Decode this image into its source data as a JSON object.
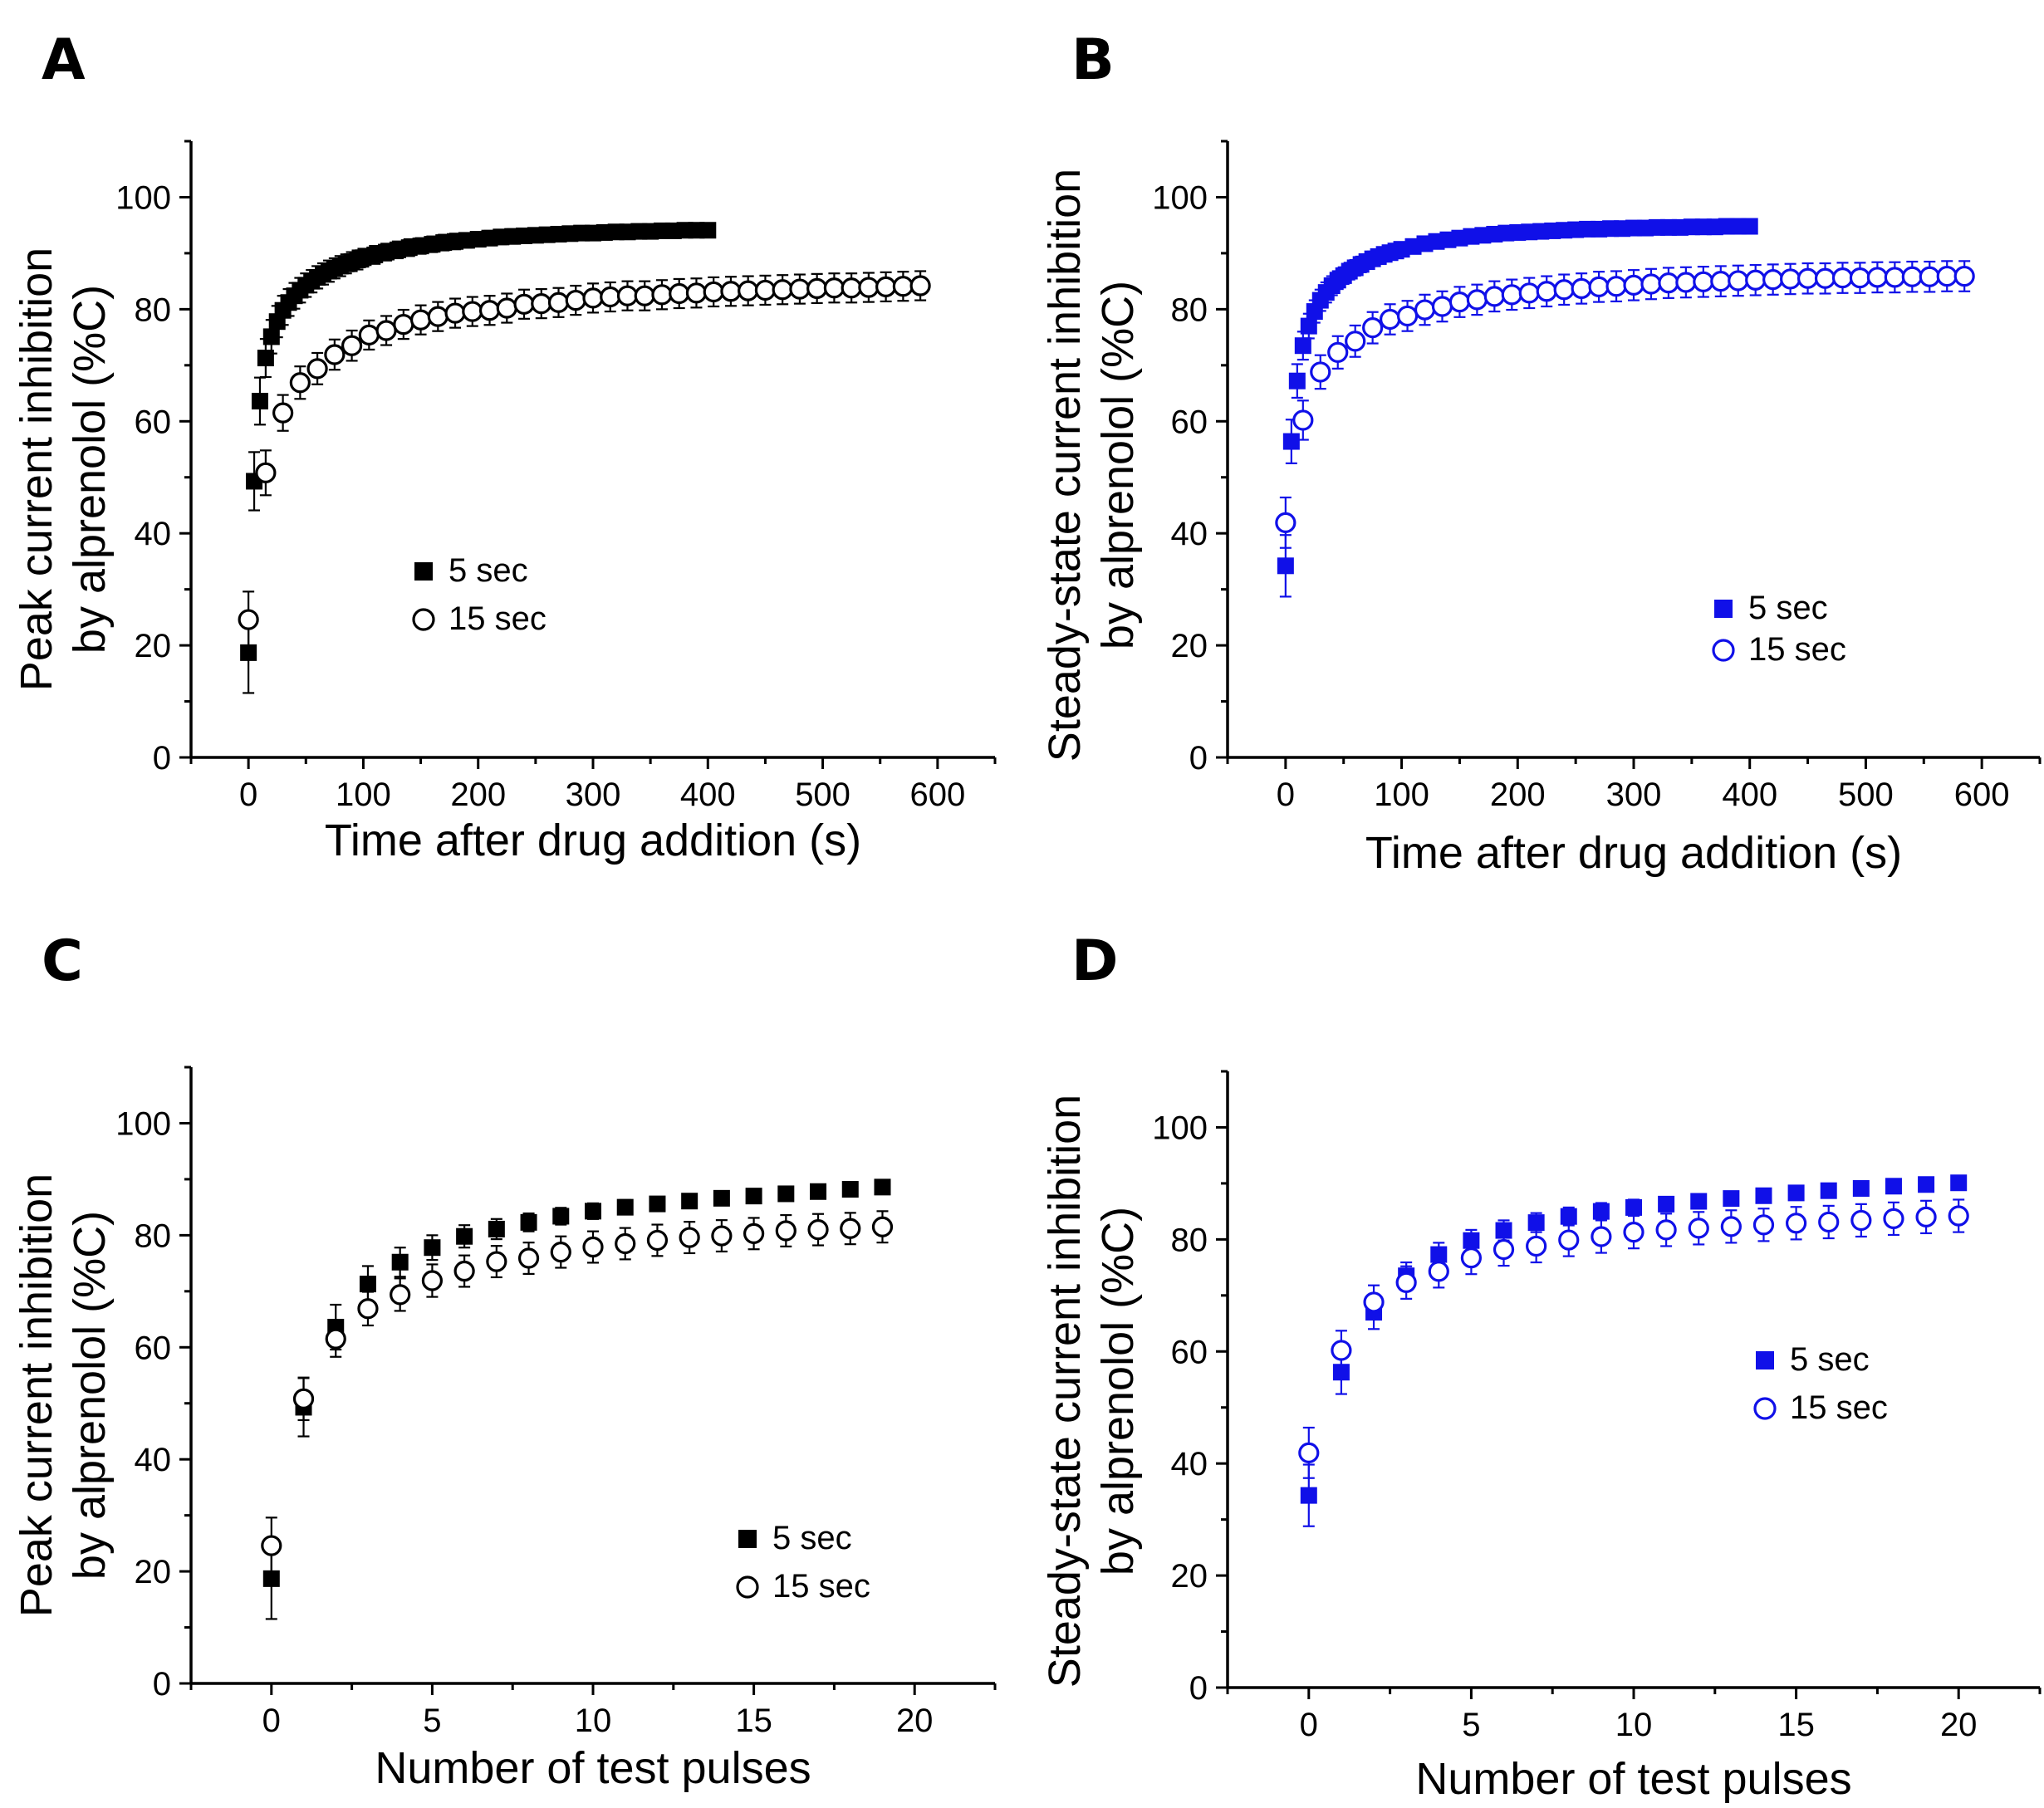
{
  "colors": {
    "black": "#000000",
    "blue": "#1010e8"
  },
  "chart_data": [
    {
      "panel_label": "A",
      "type": "scatter",
      "xlabel": "Time after drug addition (s)",
      "ylabel_line1": "Peak current inhibition",
      "ylabel_line2": "by alprenolol (%C)",
      "xlim": [
        -50,
        650
      ],
      "ylim": [
        0,
        110
      ],
      "xticks": [
        0,
        100,
        200,
        300,
        400,
        500,
        600
      ],
      "yticks": [
        0,
        20,
        40,
        60,
        80,
        100
      ],
      "color": "black",
      "legend_position": "center",
      "series": [
        {
          "name": "5 sec",
          "marker": "square-filled",
          "x": [
            0,
            5,
            10,
            15,
            20,
            25,
            30,
            35,
            40,
            45,
            50,
            55,
            60,
            65,
            70,
            75,
            80,
            85,
            90,
            95,
            100,
            110,
            120,
            130,
            140,
            150,
            160,
            170,
            180,
            190,
            200,
            210,
            220,
            230,
            240,
            250,
            260,
            270,
            280,
            290,
            300,
            310,
            320,
            330,
            340,
            350,
            360,
            370,
            380,
            390,
            400
          ],
          "y": [
            18.7,
            49.3,
            63.6,
            71.3,
            75.1,
            77.8,
            79.8,
            81.2,
            82.4,
            83.4,
            84.3,
            85,
            85.7,
            86.3,
            86.8,
            87.3,
            87.7,
            88.1,
            88.5,
            88.8,
            89.2,
            89.7,
            90.2,
            90.6,
            91,
            91.3,
            91.6,
            91.9,
            92.1,
            92.3,
            92.5,
            92.7,
            92.9,
            93,
            93.1,
            93.2,
            93.3,
            93.4,
            93.5,
            93.6,
            93.6,
            93.7,
            93.8,
            93.8,
            93.9,
            93.9,
            94,
            94,
            94.1,
            94.1,
            94.1
          ],
          "err": [
            7.2,
            5.2,
            4.2,
            3.4,
            3,
            2.8,
            2.6,
            2.4,
            2.3,
            2.2,
            2.1,
            2,
            2,
            1.9,
            1.9,
            1.8,
            1.8,
            1.7,
            1.7,
            1.7,
            1.6,
            1.6,
            1.5,
            1.5,
            1.5,
            1.4,
            1.4,
            1.4,
            1.4,
            1.3,
            1.3,
            1.3,
            1.3,
            1.3,
            1.3,
            1.2,
            1.2,
            1.2,
            1.2,
            1.2,
            1.2,
            1.2,
            1.2,
            1.2,
            1.2,
            1.2,
            1.2,
            1.2,
            1.2,
            1.2,
            1.2
          ]
        },
        {
          "name": "15 sec",
          "marker": "circle-open",
          "x": [
            0,
            15,
            30,
            45,
            60,
            75,
            90,
            105,
            120,
            135,
            150,
            165,
            180,
            195,
            210,
            225,
            240,
            255,
            270,
            285,
            300,
            315,
            330,
            345,
            360,
            375,
            390,
            405,
            420,
            435,
            450,
            465,
            480,
            495,
            510,
            525,
            540,
            555,
            570,
            585
          ],
          "y": [
            24.6,
            50.8,
            61.5,
            66.9,
            69.4,
            71.9,
            73.5,
            75.4,
            76.2,
            77.3,
            78.1,
            78.7,
            79.3,
            79.6,
            79.8,
            80.2,
            80.9,
            81,
            81.2,
            81.6,
            82,
            82.2,
            82.4,
            82.4,
            82.6,
            82.8,
            82.9,
            83.1,
            83.2,
            83.3,
            83.4,
            83.5,
            83.6,
            83.7,
            83.8,
            83.8,
            83.9,
            84,
            84.1,
            84.2
          ],
          "err": [
            5,
            4,
            3.2,
            2.9,
            2.8,
            2.7,
            2.7,
            2.6,
            2.6,
            2.6,
            2.6,
            2.6,
            2.6,
            2.6,
            2.6,
            2.6,
            2.6,
            2.6,
            2.6,
            2.6,
            2.6,
            2.6,
            2.6,
            2.6,
            2.6,
            2.6,
            2.6,
            2.6,
            2.6,
            2.6,
            2.6,
            2.6,
            2.6,
            2.6,
            2.6,
            2.6,
            2.6,
            2.6,
            2.6,
            2.6
          ]
        }
      ]
    },
    {
      "panel_label": "B",
      "type": "scatter",
      "xlabel": "Time after drug addition (s)",
      "ylabel_line1": "Steady-state current inhibition",
      "ylabel_line2": "by alprenolol (%C)",
      "xlim": [
        -50,
        650
      ],
      "ylim": [
        0,
        110
      ],
      "xticks": [
        0,
        100,
        200,
        300,
        400,
        500,
        600
      ],
      "yticks": [
        0,
        20,
        40,
        60,
        80,
        100
      ],
      "color": "blue",
      "legend_position": "right",
      "series": [
        {
          "name": "5 sec",
          "marker": "square-filled",
          "x": [
            0,
            5,
            10,
            15,
            20,
            25,
            30,
            35,
            40,
            45,
            50,
            55,
            60,
            65,
            70,
            75,
            80,
            85,
            90,
            95,
            100,
            110,
            120,
            130,
            140,
            150,
            160,
            170,
            180,
            190,
            200,
            210,
            220,
            230,
            240,
            250,
            260,
            270,
            280,
            290,
            300,
            310,
            320,
            330,
            340,
            350,
            360,
            370,
            380,
            390,
            400
          ],
          "y": [
            34.2,
            56.4,
            67.2,
            73.5,
            77,
            79.6,
            81.6,
            83,
            84.2,
            85.2,
            86,
            86.8,
            87.4,
            88,
            88.5,
            89,
            89.4,
            89.8,
            90.1,
            90.4,
            90.7,
            91.2,
            91.7,
            92.1,
            92.4,
            92.7,
            93,
            93.2,
            93.4,
            93.6,
            93.7,
            93.8,
            93.9,
            94,
            94.1,
            94.2,
            94.3,
            94.3,
            94.4,
            94.4,
            94.5,
            94.5,
            94.6,
            94.6,
            94.6,
            94.7,
            94.7,
            94.7,
            94.8,
            94.8,
            94.8
          ],
          "err": [
            5.5,
            3.9,
            3,
            2.5,
            2.2,
            2,
            1.9,
            1.8,
            1.7,
            1.6,
            1.5,
            1.5,
            1.4,
            1.4,
            1.3,
            1.3,
            1.3,
            1.2,
            1.2,
            1.2,
            1.1,
            1.1,
            1.1,
            1,
            1,
            1,
            1,
            1,
            1,
            1,
            1,
            1,
            1,
            1,
            1,
            1,
            1,
            1,
            1,
            1,
            1,
            1,
            1,
            1,
            1,
            1,
            1,
            1,
            1,
            1,
            1
          ]
        },
        {
          "name": "15 sec",
          "marker": "circle-open",
          "x": [
            0,
            15,
            30,
            45,
            60,
            75,
            90,
            105,
            120,
            135,
            150,
            165,
            180,
            195,
            210,
            225,
            240,
            255,
            270,
            285,
            300,
            315,
            330,
            345,
            360,
            375,
            390,
            405,
            420,
            435,
            450,
            465,
            480,
            495,
            510,
            525,
            540,
            555,
            570,
            585
          ],
          "y": [
            41.9,
            60.2,
            68.8,
            72.3,
            74.3,
            76.7,
            78.2,
            78.8,
            79.9,
            80.5,
            81.3,
            81.7,
            82.3,
            82.6,
            82.9,
            83.2,
            83.5,
            83.7,
            84,
            84.1,
            84.3,
            84.5,
            84.7,
            84.8,
            84.9,
            85,
            85.1,
            85.2,
            85.3,
            85.4,
            85.5,
            85.5,
            85.6,
            85.6,
            85.7,
            85.7,
            85.8,
            85.8,
            85.9,
            85.9
          ],
          "err": [
            4.5,
            3.5,
            3,
            2.9,
            2.8,
            2.8,
            2.7,
            2.7,
            2.7,
            2.7,
            2.7,
            2.7,
            2.7,
            2.7,
            2.7,
            2.7,
            2.7,
            2.7,
            2.7,
            2.7,
            2.7,
            2.7,
            2.7,
            2.7,
            2.7,
            2.7,
            2.7,
            2.7,
            2.7,
            2.7,
            2.7,
            2.7,
            2.7,
            2.7,
            2.7,
            2.7,
            2.7,
            2.7,
            2.7,
            2.7
          ]
        }
      ]
    },
    {
      "panel_label": "C",
      "type": "scatter",
      "xlabel": "Number of test pulses",
      "ylabel_line1": "Peak current inhibition",
      "ylabel_line2": "by alprenolol (%C)",
      "xlim": [
        -2.5,
        22.5
      ],
      "ylim": [
        0,
        110
      ],
      "xticks": [
        0,
        5,
        10,
        15,
        20
      ],
      "yticks": [
        0,
        20,
        40,
        60,
        80,
        100
      ],
      "color": "black",
      "legend_position": "bottom-right",
      "series": [
        {
          "name": "5 sec",
          "marker": "square-filled",
          "x": [
            0,
            1,
            2,
            3,
            4,
            5,
            6,
            7,
            8,
            9,
            10,
            11,
            12,
            13,
            14,
            15,
            16,
            17,
            18,
            19
          ],
          "y": [
            18.7,
            49.3,
            63.6,
            71.3,
            75.2,
            77.8,
            79.8,
            81.1,
            82.3,
            83.4,
            84.3,
            85,
            85.6,
            86.1,
            86.6,
            87,
            87.4,
            87.8,
            88.2,
            88.6
          ],
          "err": [
            7.2,
            5.2,
            4,
            3.2,
            2.6,
            2.2,
            2,
            1.8,
            1.6,
            1.5,
            1.4,
            1.3,
            1.2,
            1.2,
            1.1,
            1.1,
            1,
            1,
            1,
            1
          ]
        },
        {
          "name": "15 sec",
          "marker": "circle-open",
          "x": [
            0,
            1,
            2,
            3,
            4,
            5,
            6,
            7,
            8,
            9,
            10,
            11,
            12,
            13,
            14,
            15,
            16,
            17,
            18,
            19
          ],
          "y": [
            24.6,
            50.8,
            61.5,
            66.9,
            69.4,
            71.9,
            73.6,
            75.3,
            75.9,
            77,
            77.9,
            78.5,
            79.1,
            79.6,
            79.9,
            80.3,
            80.8,
            81,
            81.2,
            81.5
          ],
          "err": [
            5,
            3.8,
            3.2,
            3,
            2.9,
            2.9,
            2.8,
            2.8,
            2.8,
            2.8,
            2.8,
            2.8,
            2.8,
            2.8,
            2.8,
            2.8,
            2.8,
            2.8,
            2.8,
            2.8
          ]
        }
      ]
    },
    {
      "panel_label": "D",
      "type": "scatter",
      "xlabel": "Number of test pulses",
      "ylabel_line1": "Steady-state current inhibition",
      "ylabel_line2": "by alprenolol (%C)",
      "xlim": [
        -2.5,
        22.5
      ],
      "ylim": [
        0,
        110
      ],
      "xticks": [
        0,
        5,
        10,
        15,
        20
      ],
      "yticks": [
        0,
        20,
        40,
        60,
        80,
        100
      ],
      "color": "blue",
      "legend_position": "right",
      "series": [
        {
          "name": "5 sec",
          "marker": "square-filled",
          "x": [
            0,
            1,
            2,
            3,
            4,
            5,
            6,
            7,
            8,
            9,
            10,
            11,
            12,
            13,
            14,
            15,
            16,
            17,
            18,
            19,
            20
          ],
          "y": [
            34.3,
            56.3,
            67,
            73.5,
            77.3,
            79.8,
            81.6,
            83,
            84.1,
            85,
            85.7,
            86.3,
            86.8,
            87.3,
            87.8,
            88.3,
            88.7,
            89.1,
            89.5,
            89.8,
            90.1
          ],
          "err": [
            5.5,
            3.9,
            3,
            2.4,
            2.1,
            1.9,
            1.8,
            1.7,
            1.6,
            1.5,
            1.4,
            1.3,
            1.3,
            1.2,
            1.2,
            1.2,
            1.1,
            1.1,
            1.1,
            1.1,
            1.1
          ]
        },
        {
          "name": "15 sec",
          "marker": "circle-open",
          "x": [
            0,
            1,
            2,
            3,
            4,
            5,
            6,
            7,
            8,
            9,
            10,
            11,
            12,
            13,
            14,
            15,
            16,
            17,
            18,
            19,
            20
          ],
          "y": [
            41.9,
            60.2,
            68.8,
            72.3,
            74.3,
            76.7,
            78.2,
            78.8,
            79.9,
            80.5,
            81.3,
            81.7,
            82,
            82.3,
            82.6,
            82.9,
            83.1,
            83.4,
            83.7,
            84,
            84.2
          ],
          "err": [
            4.5,
            3.5,
            3,
            2.9,
            2.9,
            2.9,
            2.9,
            2.9,
            2.9,
            2.9,
            2.9,
            2.9,
            2.9,
            2.9,
            2.9,
            2.9,
            2.9,
            2.9,
            2.9,
            2.9,
            2.9
          ]
        }
      ]
    }
  ]
}
